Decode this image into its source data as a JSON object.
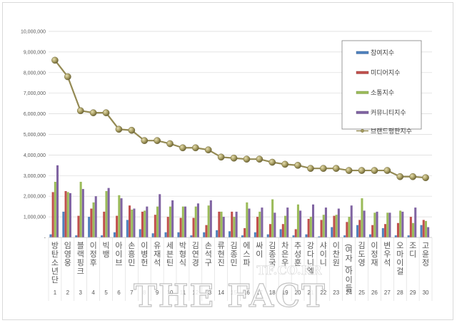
{
  "chart_data": {
    "type": "bar",
    "title": "",
    "xlabel": "",
    "ylabel": "",
    "ylim": [
      0,
      10000000
    ],
    "yticks": [
      "-",
      "1,000,000",
      "2,000,000",
      "3,000,000",
      "4,000,000",
      "5,000,000",
      "6,000,000",
      "7,000,000",
      "8,000,000",
      "9,000,000",
      "10,000,000"
    ],
    "grid": true,
    "legend_position": "upper-right",
    "categories": [
      "방탄소년단",
      "임영웅",
      "블랙핑크",
      "이정후",
      "빅뱅",
      "아이브",
      "손흥민",
      "이병헌",
      "유재석",
      "세븐틴",
      "박형식",
      "김연경",
      "손석구",
      "류현진",
      "김종민",
      "에스파",
      "싸이",
      "김종국",
      "차은우",
      "추성훈",
      "강다니엘",
      "샤이니",
      "이찬원",
      "(여자)아이들",
      "김도영",
      "이정재",
      "변우석",
      "오마이걸",
      "조디",
      "고윤정"
    ],
    "ranks": [
      "1",
      "2",
      "3",
      "4",
      "5",
      "6",
      "7",
      "8",
      "9",
      "10",
      "11",
      "12",
      "13",
      "14",
      "15",
      "16",
      "17",
      "18",
      "19",
      "20",
      "21",
      "22",
      "23",
      "24",
      "25",
      "26",
      "27",
      "28",
      "29",
      "30"
    ],
    "series": [
      {
        "name": "참여지수",
        "type": "bar",
        "color": "#4F81BD",
        "values": [
          150000,
          1250000,
          100000,
          1000000,
          100000,
          250000,
          850000,
          400000,
          200000,
          250000,
          250000,
          100000,
          250000,
          350000,
          300000,
          100000,
          250000,
          150000,
          400000,
          100000,
          150000,
          50000,
          500000,
          100000,
          600000,
          150000,
          450000,
          100000,
          100000,
          600000
        ]
      },
      {
        "name": "미디어지수",
        "type": "bar",
        "color": "#C0504D",
        "values": [
          2200000,
          2250000,
          1050000,
          1400000,
          1250000,
          1050000,
          1550000,
          1250000,
          1100000,
          1000000,
          950000,
          950000,
          600000,
          1250000,
          1250000,
          450000,
          1000000,
          650000,
          650000,
          400000,
          900000,
          850000,
          1050000,
          750000,
          850000,
          600000,
          650000,
          700000,
          1000000,
          850000
        ]
      },
      {
        "name": "소통지수",
        "type": "bar",
        "color": "#9BBB59",
        "values": [
          2700000,
          2200000,
          2700000,
          1700000,
          2250000,
          2050000,
          1350000,
          1300000,
          1500000,
          1500000,
          1500000,
          1500000,
          1550000,
          1250000,
          1000000,
          1700000,
          1250000,
          1850000,
          1050000,
          1600000,
          1000000,
          1100000,
          1100000,
          1000000,
          1900000,
          1200000,
          1200000,
          1300000,
          700000,
          800000
        ]
      },
      {
        "name": "커뮤니티지수",
        "type": "bar",
        "color": "#8064A2",
        "values": [
          3500000,
          2150000,
          2350000,
          2000000,
          2400000,
          1900000,
          1400000,
          1500000,
          2100000,
          1800000,
          1500000,
          1650000,
          1800000,
          1000000,
          1250000,
          1400000,
          1450000,
          1200000,
          1450000,
          1300000,
          1600000,
          1450000,
          1400000,
          1550000,
          1300000,
          1250000,
          1200000,
          1250000,
          1450000,
          500000
        ]
      },
      {
        "name": "브랜드평판지수",
        "type": "line",
        "color": "#948A54",
        "values": [
          8600000,
          7800000,
          6150000,
          6050000,
          6050000,
          5250000,
          5200000,
          4700000,
          4700000,
          4550000,
          4350000,
          4350000,
          4250000,
          3900000,
          3850000,
          3800000,
          3800000,
          3650000,
          3550000,
          3500000,
          3350000,
          3350000,
          3350000,
          3250000,
          3250000,
          3250000,
          3250000,
          2950000,
          2950000,
          2900000
        ]
      }
    ]
  },
  "legend": {
    "items": [
      "참여지수",
      "미디어지수",
      "소통지수",
      "커뮤니티지수",
      "브랜드평판지수"
    ]
  },
  "watermark": {
    "site": "TF.CO.KR",
    "brand": "THE FACT"
  }
}
